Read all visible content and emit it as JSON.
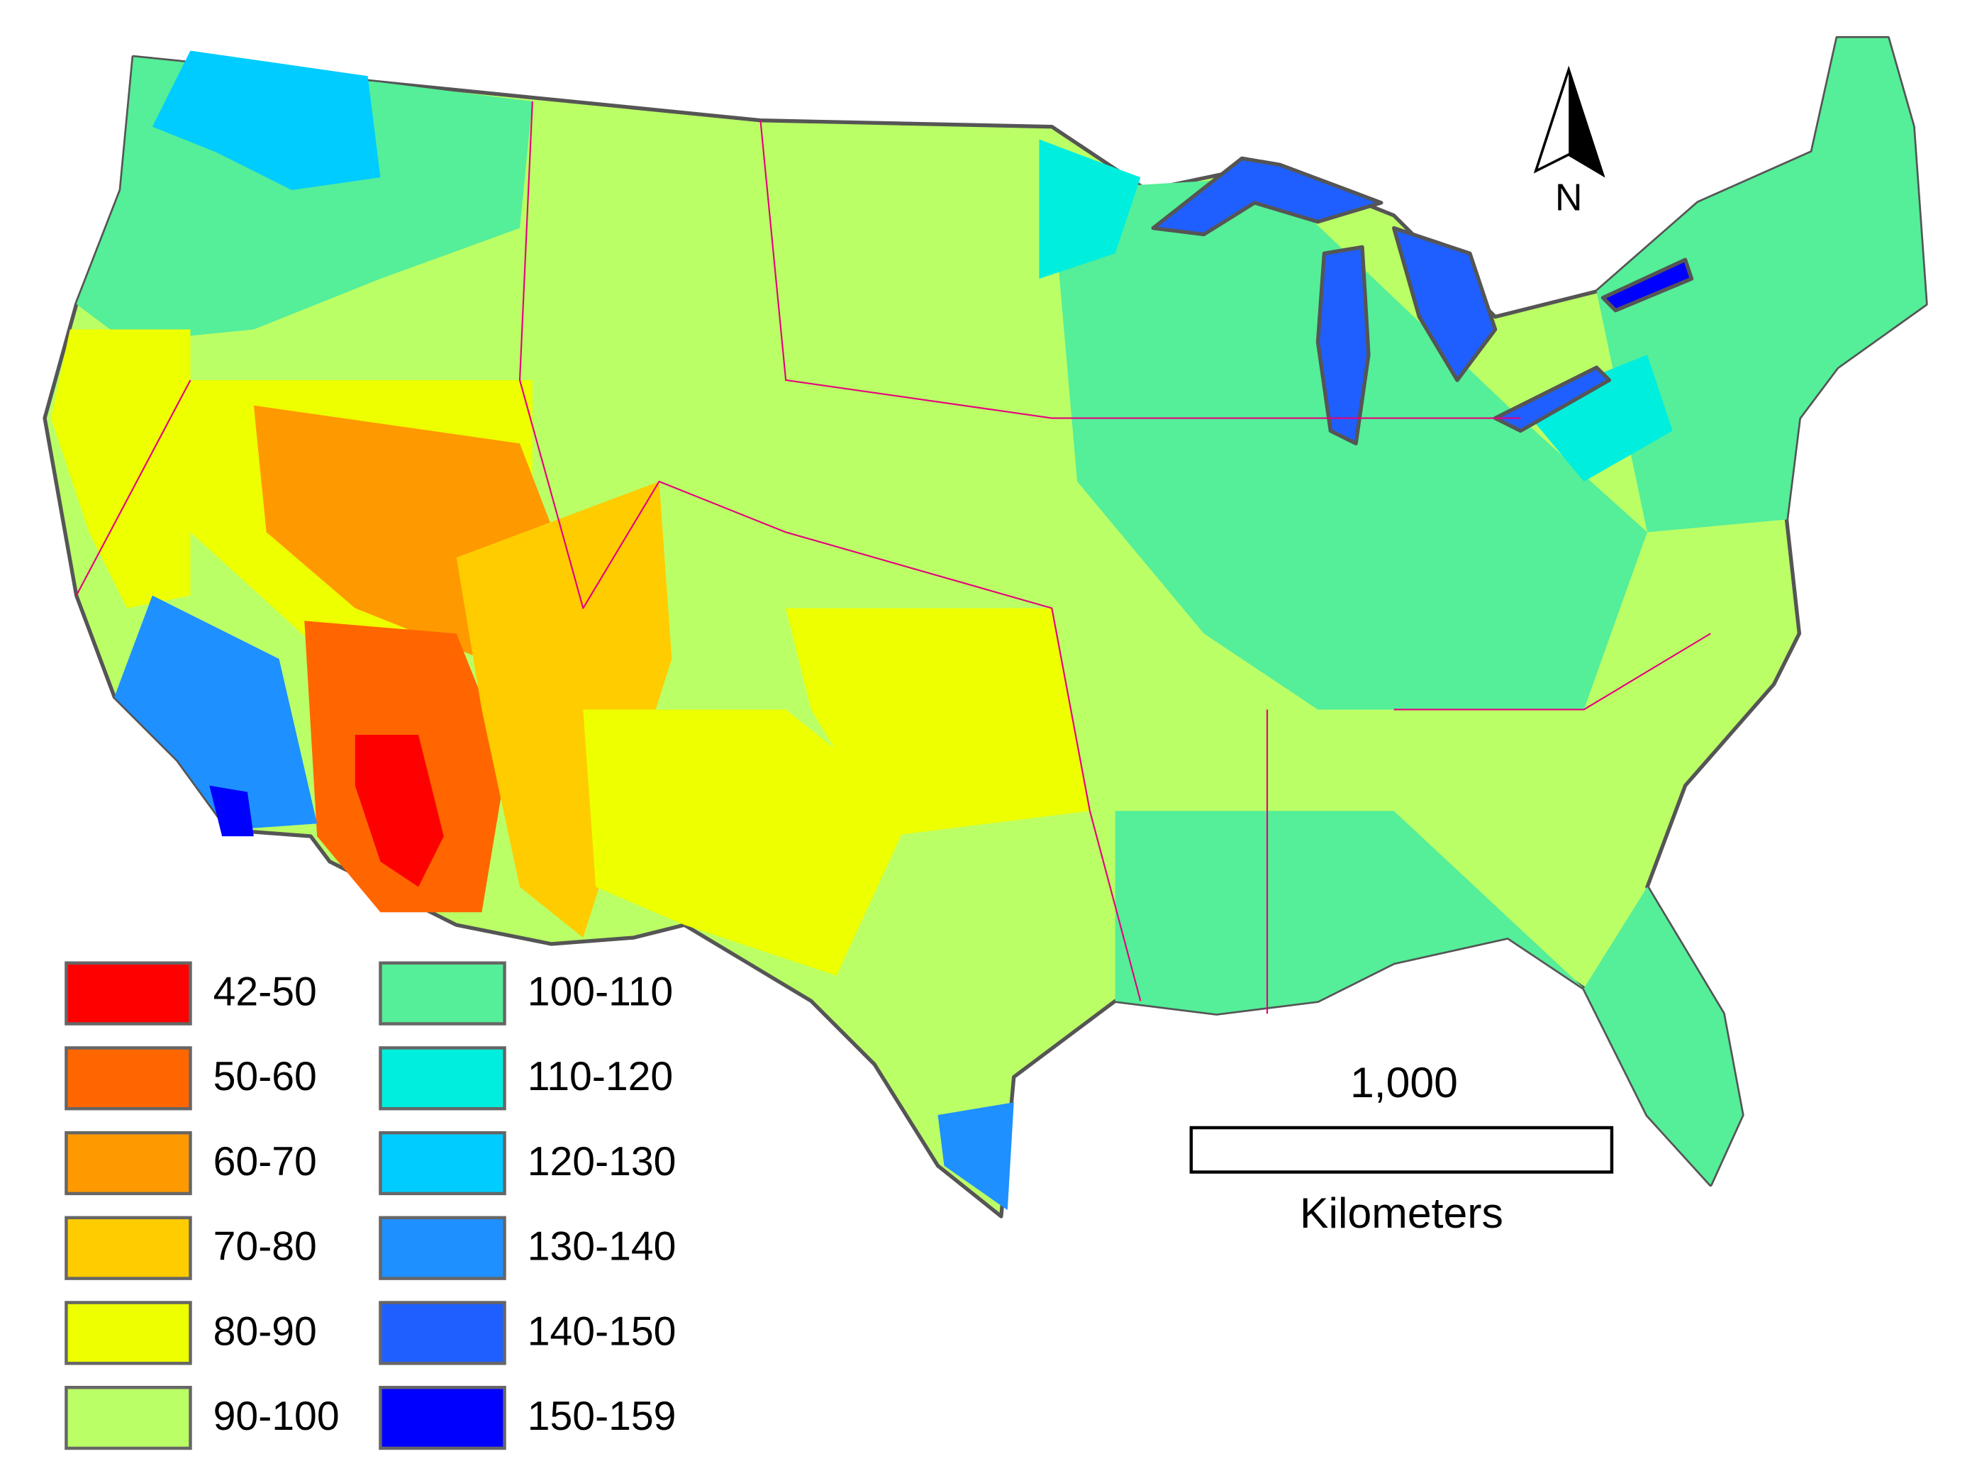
{
  "legend": [
    {
      "label": "42-50",
      "color": "#ff0000"
    },
    {
      "label": "50-60",
      "color": "#ff6600"
    },
    {
      "label": "60-70",
      "color": "#ff9900"
    },
    {
      "label": "70-80",
      "color": "#ffcc00"
    },
    {
      "label": "80-90",
      "color": "#eeff00"
    },
    {
      "label": "90-100",
      "color": "#bbff66"
    },
    {
      "label": "100-110",
      "color": "#55ee99"
    },
    {
      "label": "110-120",
      "color": "#00eedd"
    },
    {
      "label": "120-130",
      "color": "#00ccff"
    },
    {
      "label": "130-140",
      "color": "#1e90ff"
    },
    {
      "label": "140-150",
      "color": "#1f5fff"
    },
    {
      "label": "150-159",
      "color": "#0000ff"
    }
  ],
  "scale_bar": {
    "label": "1,000",
    "unit": "Kilometers"
  },
  "north_arrow": "N"
}
